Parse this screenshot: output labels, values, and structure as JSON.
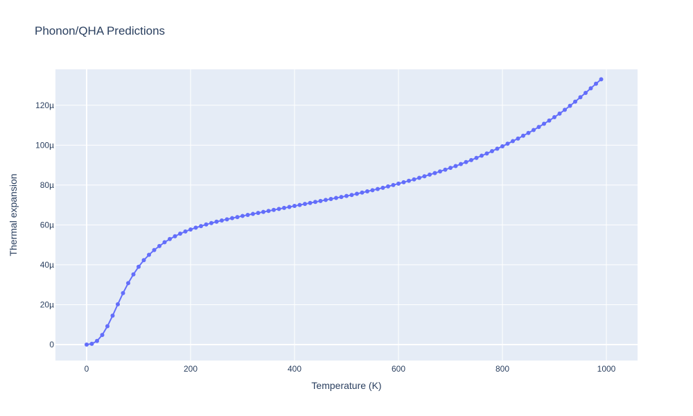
{
  "chart_data": {
    "type": "line",
    "title": "Phonon/QHA Predictions",
    "xlabel": "Temperature (K)",
    "ylabel": "Thermal expansion",
    "xlim": [
      -60,
      1060
    ],
    "ylim": [
      -8e-06,
      0.000138
    ],
    "x_ticks": [
      0,
      200,
      400,
      600,
      800,
      1000
    ],
    "x_tick_labels": [
      "0",
      "200",
      "400",
      "600",
      "800",
      "1000"
    ],
    "y_ticks": [
      0,
      2e-05,
      4e-05,
      6e-05,
      8e-05,
      0.0001,
      0.00012
    ],
    "y_tick_labels": [
      "0",
      "20µ",
      "40µ",
      "60µ",
      "80µ",
      "100µ",
      "120µ"
    ],
    "grid": true,
    "colors": {
      "series": "#636efa",
      "plot_bg": "#e5ecf6",
      "grid": "#ffffff",
      "text": "#2a3f5f"
    },
    "series": [
      {
        "x": [
          0,
          10,
          20,
          30,
          40,
          50,
          60,
          70,
          80,
          90,
          100,
          110,
          120,
          130,
          140,
          150,
          160,
          170,
          180,
          190,
          200,
          210,
          220,
          230,
          240,
          250,
          260,
          270,
          280,
          290,
          300,
          310,
          320,
          330,
          340,
          350,
          360,
          370,
          380,
          390,
          400,
          410,
          420,
          430,
          440,
          450,
          460,
          470,
          480,
          490,
          500,
          510,
          520,
          530,
          540,
          550,
          560,
          570,
          580,
          590,
          600,
          610,
          620,
          630,
          640,
          650,
          660,
          670,
          680,
          690,
          700,
          710,
          720,
          730,
          740,
          750,
          760,
          770,
          780,
          790,
          800,
          810,
          820,
          830,
          840,
          850,
          860,
          870,
          880,
          890,
          900,
          910,
          920,
          930,
          940,
          950,
          960,
          970,
          980,
          990
        ],
        "y": [
          0,
          4e-07,
          1.8e-06,
          4.8e-06,
          9.2e-06,
          1.45e-05,
          2.02e-05,
          2.58e-05,
          3.08e-05,
          3.52e-05,
          3.9e-05,
          4.23e-05,
          4.5e-05,
          4.74e-05,
          4.94e-05,
          5.13e-05,
          5.29e-05,
          5.43e-05,
          5.56e-05,
          5.67e-05,
          5.77e-05,
          5.86e-05,
          5.94e-05,
          6.02e-05,
          6.09e-05,
          6.16e-05,
          6.22e-05,
          6.28e-05,
          6.34e-05,
          6.39e-05,
          6.45e-05,
          6.5e-05,
          6.55e-05,
          6.6e-05,
          6.65e-05,
          6.7e-05,
          6.75e-05,
          6.8e-05,
          6.85e-05,
          6.9e-05,
          6.95e-05,
          7e-05,
          7.05e-05,
          7.1e-05,
          7.15e-05,
          7.2e-05,
          7.25e-05,
          7.3e-05,
          7.35e-05,
          7.4e-05,
          7.45e-05,
          7.5e-05,
          7.56e-05,
          7.62e-05,
          7.68e-05,
          7.74e-05,
          7.8e-05,
          7.86e-05,
          7.93e-05,
          8e-05,
          8.07e-05,
          8.14e-05,
          8.21e-05,
          8.28e-05,
          8.36e-05,
          8.44e-05,
          8.52e-05,
          8.6e-05,
          8.68e-05,
          8.77e-05,
          8.86e-05,
          8.95e-05,
          9.05e-05,
          9.15e-05,
          9.25e-05,
          9.36e-05,
          9.47e-05,
          9.58e-05,
          9.7e-05,
          9.82e-05,
          9.94e-05,
          0.0001007,
          0.000102,
          0.0001033,
          0.0001047,
          0.0001061,
          0.0001076,
          0.0001091,
          0.0001107,
          0.0001123,
          0.000114,
          0.0001158,
          0.0001177,
          0.0001197,
          0.0001218,
          0.000124,
          0.0001262,
          0.0001285,
          0.0001308,
          0.000133
        ]
      }
    ]
  }
}
